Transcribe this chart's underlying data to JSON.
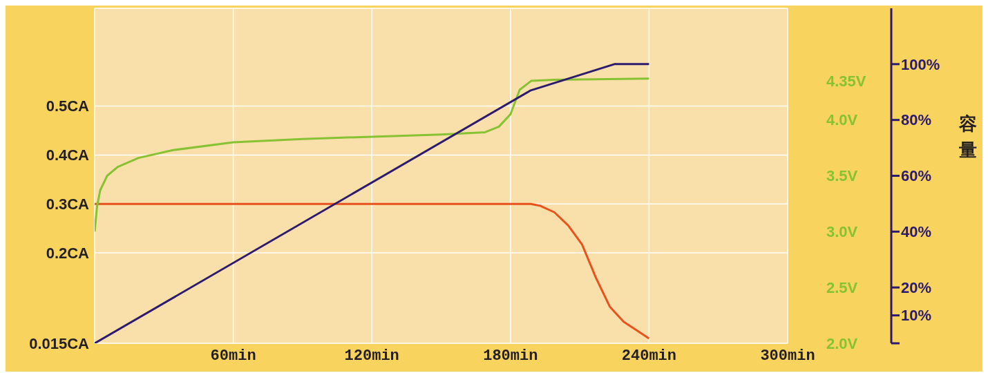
{
  "chart_data": {
    "type": "line",
    "y3label": "容量",
    "xlim": [
      0,
      300
    ],
    "xticks": [
      {
        "value": 0,
        "label": null
      },
      {
        "value": 60,
        "label": "60min"
      },
      {
        "value": 120,
        "label": "120min"
      },
      {
        "value": 180,
        "label": "180min"
      },
      {
        "value": 240,
        "label": "240min"
      },
      {
        "value": 300,
        "label": "300min"
      }
    ],
    "ylim": [
      0.015,
      0.7
    ],
    "yticks": [
      {
        "value": 0.015,
        "label": "0.015CA"
      },
      {
        "value": 0.2,
        "label": "0.2CA"
      },
      {
        "value": 0.3,
        "label": "0.3CA"
      },
      {
        "value": 0.4,
        "label": "0.4CA"
      },
      {
        "value": 0.5,
        "label": "0.5CA"
      }
    ],
    "y2lim": [
      2.0,
      5.0
    ],
    "y2ticks": [
      {
        "value": 2.0,
        "label": "2.0V"
      },
      {
        "value": 2.5,
        "label": "2.5V"
      },
      {
        "value": 3.0,
        "label": "3.0V"
      },
      {
        "value": 3.5,
        "label": "3.5V"
      },
      {
        "value": 4.0,
        "label": "4.0V"
      },
      {
        "value": 4.35,
        "label": "4.35V"
      }
    ],
    "y3lim": [
      0,
      120
    ],
    "y3ticks": [
      {
        "value": 0,
        "label": null
      },
      {
        "value": 10,
        "label": "10%"
      },
      {
        "value": 20,
        "label": "20%"
      },
      {
        "value": 40,
        "label": "40%"
      },
      {
        "value": 60,
        "label": "60%"
      },
      {
        "value": 80,
        "label": "80%"
      },
      {
        "value": 100,
        "label": "100%"
      }
    ],
    "grid": true,
    "marker": "none",
    "line_style": "solid",
    "series": [
      {
        "color": "#e8521d",
        "x": [
          0,
          188.8,
          193,
          199,
          205,
          211,
          217,
          223,
          229,
          240
        ],
        "values": [
          0.3,
          0.3,
          0.296,
          0.283,
          0.256,
          0.217,
          0.149,
          0.09,
          0.059,
          0.025
        ]
      },
      {
        "color": "#86c232",
        "axis": "y2",
        "x": [
          0,
          1,
          2.4,
          5.4,
          10,
          19,
          34,
          60,
          90,
          120,
          150,
          169,
          175,
          180,
          184,
          189,
          199,
          240
        ],
        "values": [
          3.0,
          3.22,
          3.37,
          3.5,
          3.58,
          3.66,
          3.73,
          3.8,
          3.83,
          3.85,
          3.87,
          3.89,
          3.94,
          4.05,
          4.27,
          4.35,
          4.36,
          4.37
        ]
      },
      {
        "color": "#2c1a6e",
        "axis": "y3",
        "x": [
          0,
          188.8,
          225,
          240
        ],
        "values": [
          0,
          90.6,
          100,
          100
        ]
      }
    ]
  }
}
